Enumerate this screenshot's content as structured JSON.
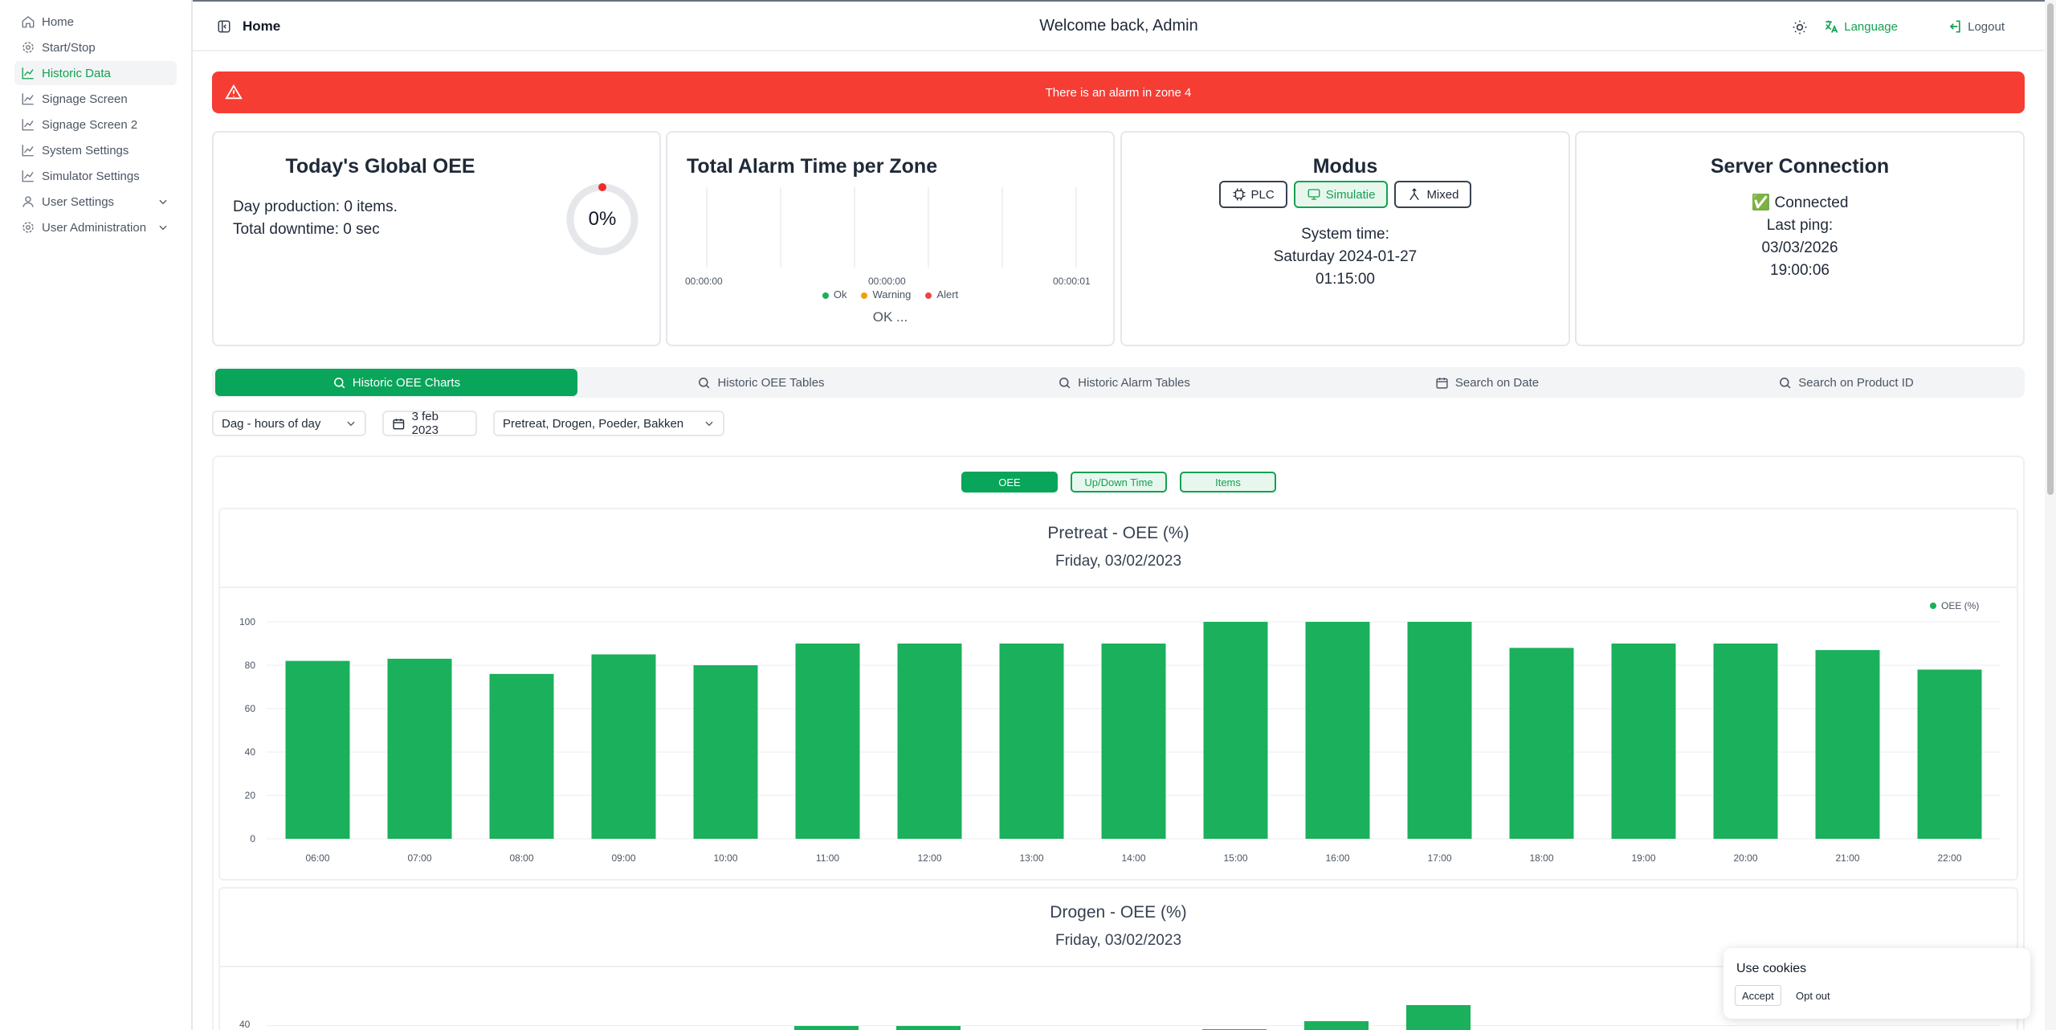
{
  "sidebar": {
    "items": [
      {
        "label": "Home",
        "icon": "home-icon"
      },
      {
        "label": "Start/Stop",
        "icon": "gear-icon"
      },
      {
        "label": "Historic Data",
        "icon": "line-chart-icon"
      },
      {
        "label": "Signage Screen",
        "icon": "line-chart-icon"
      },
      {
        "label": "Signage Screen 2",
        "icon": "line-chart-icon"
      },
      {
        "label": "System Settings",
        "icon": "line-chart-icon"
      },
      {
        "label": "Simulator Settings",
        "icon": "line-chart-icon"
      },
      {
        "label": "User Settings",
        "icon": "user-icon"
      },
      {
        "label": "User Administration",
        "icon": "gear-icon"
      }
    ]
  },
  "header": {
    "title": "Home",
    "welcome": "Welcome back, Admin",
    "language": "Language",
    "logout": "Logout"
  },
  "alarm": {
    "message": "There is an alarm in zone 4",
    "color": "#f53d34"
  },
  "oee_card": {
    "title": "Today's Global OEE",
    "production": "Day production: 0 items.",
    "downtime": "Total downtime: 0 sec",
    "value": "0%"
  },
  "alarm_card": {
    "title": "Total Alarm Time per Zone",
    "ticks": [
      "00:00:00",
      "00:00:00",
      "00:00:01"
    ],
    "legend": [
      "Ok",
      "Warning",
      "Alert"
    ],
    "status": "OK ..."
  },
  "modus_card": {
    "title": "Modus",
    "modes": [
      "PLC",
      "Simulatie",
      "Mixed"
    ],
    "selected": "Simulatie",
    "time_label": "System time:",
    "date": "Saturday 2024-01-27",
    "time": "01:15:00"
  },
  "server_card": {
    "title": "Server Connection",
    "status": "✅ Connected",
    "ping_label": "Last ping:",
    "ping_date": "03/03/2026",
    "ping_time": "19:00:06"
  },
  "tabs": [
    "Historic OEE Charts",
    "Historic OEE Tables",
    "Historic Alarm Tables",
    "Search on Date",
    "Search on Product ID"
  ],
  "filters": {
    "range": "Dag - hours of day",
    "date": "3 feb 2023",
    "zones": "Pretreat, Drogen, Poeder, Bakken"
  },
  "toggles": [
    "OEE",
    "Up/Down Time",
    "Items"
  ],
  "accent": "#1ab05c",
  "chart_data": [
    {
      "type": "bar",
      "title": "Pretreat - OEE (%)",
      "subtitle": "Friday, 03/02/2023",
      "legend": "OEE (%)",
      "legend_position": "top-right",
      "categories": [
        "06:00",
        "07:00",
        "08:00",
        "09:00",
        "10:00",
        "11:00",
        "12:00",
        "13:00",
        "14:00",
        "15:00",
        "16:00",
        "17:00",
        "18:00",
        "19:00",
        "20:00",
        "21:00",
        "22:00"
      ],
      "values": [
        82,
        83,
        76,
        85,
        80,
        90,
        90,
        90,
        90,
        100,
        100,
        100,
        88,
        90,
        90,
        87,
        78
      ],
      "yticks": [
        0,
        20,
        40,
        60,
        80,
        100
      ],
      "ylim": [
        0,
        100
      ],
      "grid": true
    },
    {
      "type": "bar",
      "title": "Drogen - OEE (%)",
      "subtitle": "Friday, 03/02/2023",
      "yticks": [
        40
      ]
    }
  ],
  "cookie": {
    "title": "Use cookies",
    "accept": "Accept",
    "opt_out": "Opt out"
  }
}
